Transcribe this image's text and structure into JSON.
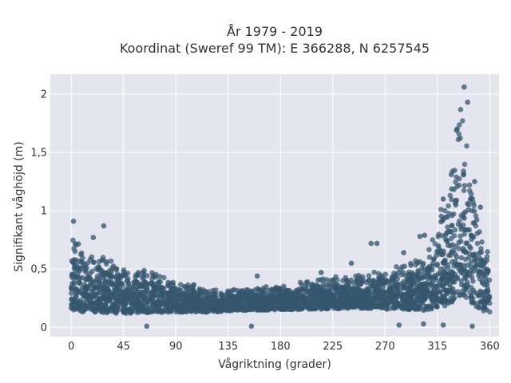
{
  "chart_data": {
    "type": "scatter",
    "title_line1": "År 1979 - 2019",
    "title_line2": "Koordinat (Sweref 99 TM): E 366288, N 6257545",
    "xlabel": "Vågriktning (grader)",
    "ylabel": "Signifikant våghöjd (m)",
    "xlim": [
      -18,
      368
    ],
    "ylim": [
      -0.08,
      2.17
    ],
    "xticks": [
      0,
      45,
      90,
      135,
      180,
      225,
      270,
      315,
      360
    ],
    "xtick_labels": [
      "0",
      "45",
      "90",
      "135",
      "180",
      "225",
      "270",
      "315",
      "360"
    ],
    "yticks": [
      0,
      0.5,
      1,
      1.5,
      2
    ],
    "ytick_labels": [
      "0",
      "0,5",
      "1",
      "1,5",
      "2"
    ],
    "grid": true,
    "background": "#e5e5ef",
    "marker_color": "#34566e",
    "envelope": {
      "x": [
        0,
        5,
        10,
        20,
        30,
        45,
        60,
        75,
        90,
        105,
        120,
        135,
        150,
        165,
        180,
        195,
        210,
        225,
        240,
        255,
        270,
        285,
        300,
        310,
        315,
        320,
        325,
        330,
        335,
        340,
        345,
        350,
        355,
        360
      ],
      "y_min": [
        0.05,
        0.05,
        0.05,
        0.06,
        0.06,
        0.06,
        0.07,
        0.08,
        0.09,
        0.1,
        0.1,
        0.11,
        0.12,
        0.12,
        0.12,
        0.12,
        0.12,
        0.12,
        0.12,
        0.12,
        0.11,
        0.1,
        0.08,
        0.07,
        0.06,
        0.05,
        0.05,
        0.05,
        0.05,
        0.05,
        0.05,
        0.05,
        0.05,
        0.05
      ],
      "y_max": [
        0.78,
        0.8,
        0.72,
        0.65,
        0.6,
        0.56,
        0.52,
        0.48,
        0.42,
        0.37,
        0.35,
        0.34,
        0.34,
        0.35,
        0.37,
        0.39,
        0.41,
        0.43,
        0.45,
        0.47,
        0.5,
        0.55,
        0.62,
        0.75,
        0.9,
        1.1,
        1.3,
        1.6,
        1.95,
        1.6,
        1.25,
        1.0,
        0.8,
        0.72
      ]
    },
    "outliers": [
      {
        "x": 2,
        "y": 0.91
      },
      {
        "x": 28,
        "y": 0.87
      },
      {
        "x": 19,
        "y": 0.77
      },
      {
        "x": 338,
        "y": 2.06
      },
      {
        "x": 341,
        "y": 1.93
      },
      {
        "x": 332,
        "y": 1.7
      },
      {
        "x": 327,
        "y": 1.31
      },
      {
        "x": 320,
        "y": 1.1
      },
      {
        "x": 347,
        "y": 1.25
      },
      {
        "x": 352,
        "y": 1.03
      },
      {
        "x": 300,
        "y": 0.78
      },
      {
        "x": 304,
        "y": 0.79
      },
      {
        "x": 258,
        "y": 0.72
      },
      {
        "x": 263,
        "y": 0.72
      },
      {
        "x": 286,
        "y": 0.64
      },
      {
        "x": 241,
        "y": 0.55
      },
      {
        "x": 160,
        "y": 0.44
      },
      {
        "x": 215,
        "y": 0.47
      },
      {
        "x": 155,
        "y": 0.01
      },
      {
        "x": 65,
        "y": 0.01
      },
      {
        "x": 282,
        "y": 0.02
      },
      {
        "x": 303,
        "y": 0.03
      },
      {
        "x": 320,
        "y": 0.02
      },
      {
        "x": 345,
        "y": 0.01
      }
    ]
  }
}
